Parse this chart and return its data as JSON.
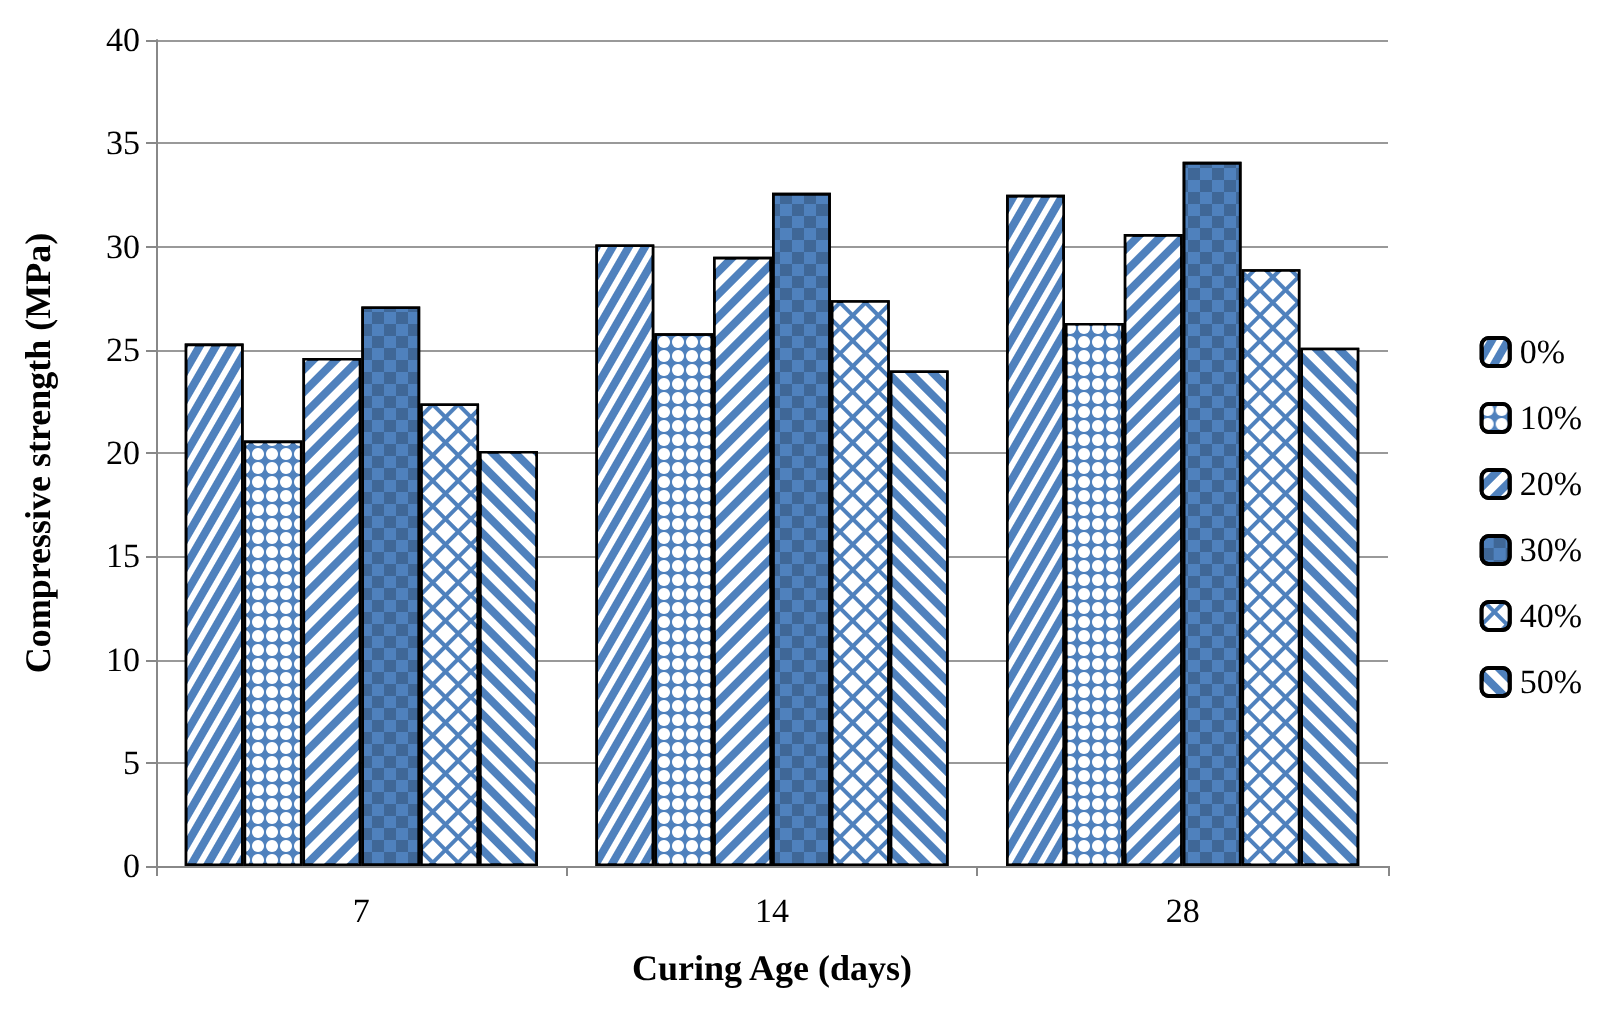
{
  "chart_data": {
    "type": "bar",
    "xlabel": "Curing Age (days)",
    "ylabel": "Compressive strength (MPa)",
    "categories": [
      "7",
      "14",
      "28"
    ],
    "series": [
      {
        "name": "0%",
        "color": "#4f81bd",
        "values": [
          25.3,
          30.1,
          32.5
        ]
      },
      {
        "name": "10%",
        "color": "#4f81bd",
        "values": [
          20.6,
          25.8,
          26.3
        ]
      },
      {
        "name": "20%",
        "color": "#4f81bd",
        "values": [
          24.6,
          29.5,
          30.6
        ]
      },
      {
        "name": "30%",
        "color": "#4f81bd",
        "values": [
          27.1,
          32.6,
          34.1
        ]
      },
      {
        "name": "40%",
        "color": "#4f81bd",
        "values": [
          22.4,
          27.4,
          28.9
        ]
      },
      {
        "name": "50%",
        "color": "#4f81bd",
        "values": [
          20.1,
          24.0,
          25.1
        ]
      }
    ],
    "ylim": [
      0,
      40
    ],
    "yticks": [
      0,
      5,
      10,
      15,
      20,
      25,
      30,
      35,
      40
    ],
    "grid": "y",
    "legend": "right"
  }
}
